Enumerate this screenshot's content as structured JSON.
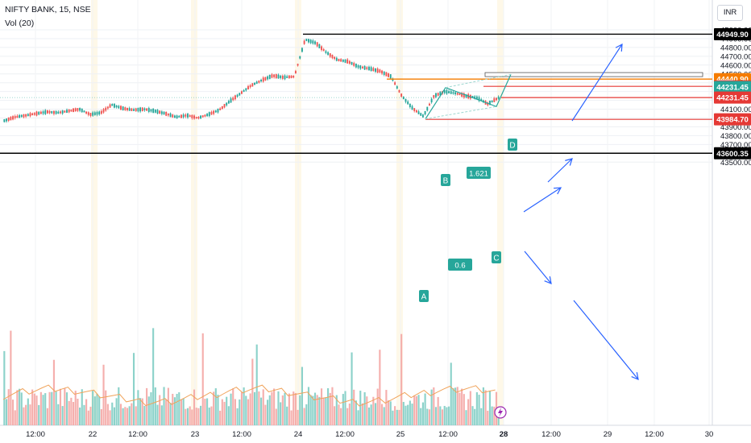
{
  "header": {
    "symbol": "NIFTY BANK, 15, NSE",
    "volume_label": "Vol (20)",
    "currency": "INR"
  },
  "chart_data": {
    "type": "candlestick",
    "x_tick_labels": [
      "12:00",
      "22",
      "12:00",
      "23",
      "12:00",
      "24",
      "12:00",
      "25",
      "12:00",
      "28",
      "12:00",
      "29",
      "12:00",
      "30"
    ],
    "y_tick_labels": [
      45000,
      44900,
      44800,
      44700,
      44600,
      44500,
      44400,
      44300,
      44200,
      44100,
      44000,
      43900,
      43800,
      43700,
      43600,
      43500
    ],
    "ylim": [
      43445,
      45110
    ],
    "price_levels": [
      {
        "name": "high",
        "value": 44949.9,
        "label": "44949.90",
        "color": "#000000"
      },
      {
        "name": "resistance",
        "value": 44440.9,
        "label": "44440.90",
        "color": "#f57c00"
      },
      {
        "name": "level-1",
        "value": 44359.1,
        "label": "44359.10",
        "color": "#e53935"
      },
      {
        "name": "last-price",
        "value": 44231.45,
        "label": "44231.45",
        "color": "#26a69a"
      },
      {
        "name": "level-2",
        "value": 44231.45,
        "label": "44231.45",
        "color": "#e53935"
      },
      {
        "name": "level-3",
        "value": 43984.7,
        "label": "43984.70",
        "color": "#e53935"
      },
      {
        "name": "support",
        "value": 43600.35,
        "label": "43600.35",
        "color": "#000000"
      }
    ],
    "pattern": {
      "labels": [
        "A",
        "B",
        "C",
        "D"
      ],
      "ratios": [
        "1.621",
        "0.6"
      ],
      "points": [
        {
          "label": "A",
          "value": 43990
        },
        {
          "label": "B",
          "value": 44345
        },
        {
          "label": "C",
          "value": 44130
        },
        {
          "label": "D",
          "value": 44495
        }
      ]
    },
    "candles_sampled": [
      {
        "o": 43930,
        "h": 43990,
        "l": 43910,
        "c": 43970
      },
      {
        "o": 43970,
        "h": 44020,
        "l": 43950,
        "c": 44010
      },
      {
        "o": 44010,
        "h": 44060,
        "l": 43990,
        "c": 44030
      },
      {
        "o": 44030,
        "h": 44070,
        "l": 44000,
        "c": 44050
      },
      {
        "o": 44050,
        "h": 44090,
        "l": 44020,
        "c": 44070
      },
      {
        "o": 44070,
        "h": 44110,
        "l": 44040,
        "c": 44060
      },
      {
        "o": 44060,
        "h": 44100,
        "l": 44030,
        "c": 44080
      },
      {
        "o": 44080,
        "h": 44120,
        "l": 44050,
        "c": 44100
      },
      {
        "o": 44100,
        "h": 44130,
        "l": 44020,
        "c": 44040
      },
      {
        "o": 44040,
        "h": 44080,
        "l": 44000,
        "c": 44060
      },
      {
        "o": 44060,
        "h": 44170,
        "l": 44040,
        "c": 44150
      },
      {
        "o": 44150,
        "h": 44160,
        "l": 44090,
        "c": 44110
      },
      {
        "o": 44110,
        "h": 44140,
        "l": 44070,
        "c": 44090
      },
      {
        "o": 44090,
        "h": 44130,
        "l": 44060,
        "c": 44100
      },
      {
        "o": 44100,
        "h": 44120,
        "l": 44060,
        "c": 44080
      },
      {
        "o": 44080,
        "h": 44110,
        "l": 44030,
        "c": 44050
      },
      {
        "o": 44050,
        "h": 44070,
        "l": 43990,
        "c": 44010
      },
      {
        "o": 44010,
        "h": 44050,
        "l": 43970,
        "c": 44030
      },
      {
        "o": 44030,
        "h": 44060,
        "l": 43980,
        "c": 44000
      },
      {
        "o": 44000,
        "h": 44050,
        "l": 43960,
        "c": 44040
      },
      {
        "o": 44040,
        "h": 44110,
        "l": 44020,
        "c": 44090
      },
      {
        "o": 44090,
        "h": 44210,
        "l": 44070,
        "c": 44190
      },
      {
        "o": 44190,
        "h": 44300,
        "l": 44170,
        "c": 44280
      },
      {
        "o": 44280,
        "h": 44390,
        "l": 44260,
        "c": 44370
      },
      {
        "o": 44370,
        "h": 44450,
        "l": 44350,
        "c": 44430
      },
      {
        "o": 44430,
        "h": 44490,
        "l": 44410,
        "c": 44480
      },
      {
        "o": 44480,
        "h": 44510,
        "l": 44440,
        "c": 44460
      },
      {
        "o": 44460,
        "h": 44500,
        "l": 44440,
        "c": 44470
      },
      {
        "o": 44700,
        "h": 44950,
        "l": 44640,
        "c": 44890
      },
      {
        "o": 44890,
        "h": 44940,
        "l": 44820,
        "c": 44850
      },
      {
        "o": 44850,
        "h": 44870,
        "l": 44720,
        "c": 44740
      },
      {
        "o": 44740,
        "h": 44760,
        "l": 44640,
        "c": 44660
      },
      {
        "o": 44660,
        "h": 44700,
        "l": 44600,
        "c": 44640
      },
      {
        "o": 44640,
        "h": 44660,
        "l": 44560,
        "c": 44580
      },
      {
        "o": 44580,
        "h": 44620,
        "l": 44530,
        "c": 44560
      },
      {
        "o": 44560,
        "h": 44590,
        "l": 44500,
        "c": 44530
      },
      {
        "o": 44530,
        "h": 44550,
        "l": 44450,
        "c": 44470
      },
      {
        "o": 44340,
        "h": 44370,
        "l": 44220,
        "c": 44250
      },
      {
        "o": 44250,
        "h": 44270,
        "l": 44080,
        "c": 44110
      },
      {
        "o": 44110,
        "h": 44140,
        "l": 43990,
        "c": 44020
      },
      {
        "o": 44020,
        "h": 44270,
        "l": 44000,
        "c": 44250
      },
      {
        "o": 44250,
        "h": 44345,
        "l": 44230,
        "c": 44300
      },
      {
        "o": 44300,
        "h": 44330,
        "l": 44240,
        "c": 44280
      },
      {
        "o": 44280,
        "h": 44310,
        "l": 44220,
        "c": 44250
      },
      {
        "o": 44250,
        "h": 44280,
        "l": 44190,
        "c": 44230
      },
      {
        "o": 44230,
        "h": 44250,
        "l": 44140,
        "c": 44160
      },
      {
        "o": 44160,
        "h": 44250,
        "l": 44130,
        "c": 44230
      }
    ]
  }
}
